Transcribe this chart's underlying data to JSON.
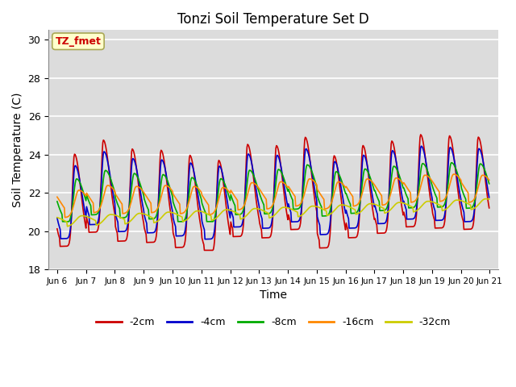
{
  "title": "Tonzi Soil Temperature Set D",
  "xlabel": "Time",
  "ylabel": "Soil Temperature (C)",
  "ylim": [
    18,
    30.5
  ],
  "xlim_days": [
    5.7,
    21.3
  ],
  "plot_bg_color": "#dcdcdc",
  "grid_color": "#ffffff",
  "legend_label": "TZ_fmet",
  "legend_label_color": "#cc0000",
  "legend_box_color": "#ffffcc",
  "legend_box_edge": "#aaa855",
  "series_colors": [
    "#cc0000",
    "#0000cc",
    "#00aa00",
    "#ff8800",
    "#cccc00"
  ],
  "series_labels": [
    "-2cm",
    "-4cm",
    "-8cm",
    "-16cm",
    "-32cm"
  ],
  "tick_labels": [
    "Jun 6",
    "Jun 7",
    "Jun 8",
    "Jun 9",
    "Jun 10",
    "Jun 11",
    "Jun 12",
    "Jun 13",
    "Jun 14",
    "Jun 15",
    "Jun 16",
    "Jun 17",
    "Jun 18",
    "Jun 19",
    "Jun 20",
    "Jun 21"
  ],
  "tick_positions": [
    6,
    7,
    8,
    9,
    10,
    11,
    12,
    13,
    14,
    15,
    16,
    17,
    18,
    19,
    20,
    21
  ],
  "yticks": [
    18,
    20,
    22,
    24,
    26,
    28,
    30
  ]
}
